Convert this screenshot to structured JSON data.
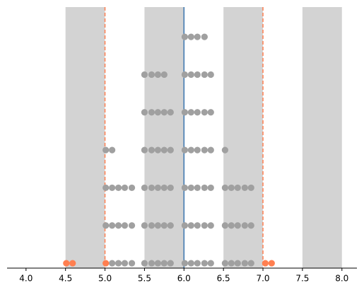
{
  "chart_data": {
    "type": "scatter",
    "xlim": [
      3.76,
      8.19
    ],
    "ylim": [
      -0.13,
      6.79
    ],
    "xticks": [
      {
        "value": 4,
        "label": "4.0"
      },
      4.5,
      {
        "value": 5,
        "label": "5.0"
      },
      5.5,
      {
        "value": 6,
        "label": "6.0"
      },
      6.5,
      {
        "value": 7,
        "label": "7.0"
      },
      7.5,
      {
        "value": 8,
        "label": "8.0"
      }
    ],
    "bands": {
      "color": "#d3d3d3",
      "ranges": [
        [
          4.5,
          5.0
        ],
        [
          5.5,
          6.0
        ],
        [
          6.5,
          7.0
        ],
        [
          7.5,
          8.0
        ]
      ]
    },
    "vlines": [
      {
        "x": 5.0,
        "color": "#ff7f50",
        "dashed": true
      },
      {
        "x": 6.0,
        "color": "#3a76af",
        "dashed": false
      },
      {
        "x": 7.0,
        "color": "#ff7f50",
        "dashed": true
      }
    ],
    "series": [
      {
        "color": "#a0a0a0",
        "x": [
          5.09,
          5.17,
          5.25,
          5.34,
          5.5,
          5.59,
          5.67,
          5.75,
          5.83,
          6.01,
          6.09,
          6.17,
          6.26,
          6.34,
          6.52,
          6.6,
          6.68,
          6.77,
          6.85,
          5.01,
          5.09,
          5.17,
          5.25,
          5.34,
          5.5,
          5.59,
          5.67,
          5.75,
          5.83,
          6.01,
          6.09,
          6.17,
          6.26,
          6.34,
          6.52,
          6.6,
          6.68,
          6.77,
          6.85,
          5.01,
          5.09,
          5.17,
          5.25,
          5.34,
          5.5,
          5.59,
          5.67,
          5.75,
          5.83,
          6.01,
          6.09,
          6.17,
          6.26,
          6.34,
          6.52,
          6.6,
          6.68,
          6.77,
          6.85,
          5.01,
          5.09,
          5.5,
          5.59,
          5.67,
          5.75,
          5.83,
          6.01,
          6.09,
          6.17,
          6.26,
          6.34,
          6.52,
          5.5,
          5.59,
          5.67,
          5.75,
          5.83,
          6.01,
          6.09,
          6.17,
          6.26,
          6.34,
          5.5,
          5.59,
          5.67,
          5.75,
          6.01,
          6.09,
          6.17,
          6.26,
          6.34,
          6.01,
          6.09,
          6.17,
          6.26
        ],
        "y": [
          0,
          0,
          0,
          0,
          0,
          0,
          0,
          0,
          0,
          0,
          0,
          0,
          0,
          0,
          0,
          0,
          0,
          0,
          0,
          1,
          1,
          1,
          1,
          1,
          1,
          1,
          1,
          1,
          1,
          1,
          1,
          1,
          1,
          1,
          1,
          1,
          1,
          1,
          1,
          2,
          2,
          2,
          2,
          2,
          2,
          2,
          2,
          2,
          2,
          2,
          2,
          2,
          2,
          2,
          2,
          2,
          2,
          2,
          2,
          3,
          3,
          3,
          3,
          3,
          3,
          3,
          3,
          3,
          3,
          3,
          3,
          3,
          4,
          4,
          4,
          4,
          4,
          4,
          4,
          4,
          4,
          4,
          5,
          5,
          5,
          5,
          5,
          5,
          5,
          5,
          5,
          6,
          6,
          6,
          6
        ]
      },
      {
        "color": "#ff7f50",
        "x": [
          4.51,
          4.59,
          5.01,
          7.03,
          7.11
        ],
        "y": [
          0,
          0,
          0,
          0,
          0
        ]
      }
    ]
  }
}
